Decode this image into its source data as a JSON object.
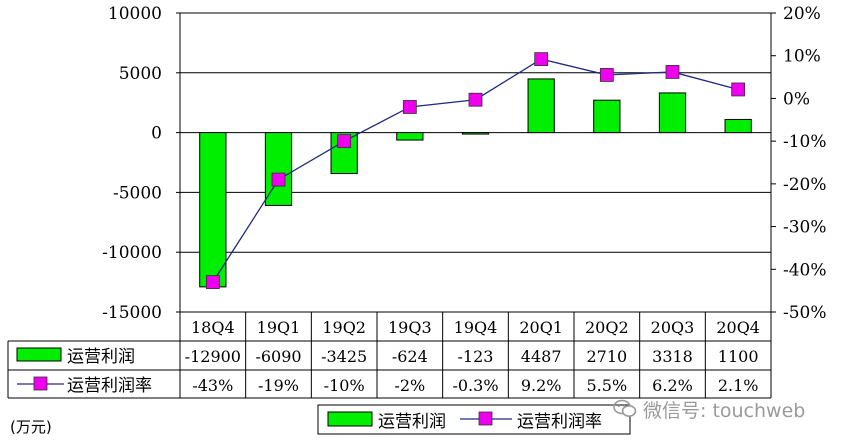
{
  "chart_data": {
    "type": "bar",
    "categories": [
      "18Q4",
      "19Q1",
      "19Q2",
      "19Q3",
      "19Q4",
      "20Q1",
      "20Q2",
      "20Q3",
      "20Q4"
    ],
    "series": [
      {
        "name": "运营利润",
        "type": "bar",
        "axis": "left",
        "color": "#00ee00",
        "values": [
          -12900,
          -6090,
          -3425,
          -624,
          -123,
          4487,
          2710,
          3318,
          1100
        ],
        "table_labels": [
          "-12900",
          "-6090",
          "-3425",
          "-624",
          "-123",
          "4487",
          "2710",
          "3318",
          "1100"
        ]
      },
      {
        "name": "运营利润率",
        "type": "line",
        "axis": "right",
        "color": "#ee00ee",
        "values": [
          -43,
          -19,
          -10,
          -2,
          -0.3,
          9.2,
          5.5,
          6.2,
          2.1
        ],
        "table_labels": [
          "-43%",
          "-19%",
          "-10%",
          "-2%",
          "-0.3%",
          "9.2%",
          "5.5%",
          "6.2%",
          "2.1%"
        ]
      }
    ],
    "y_left": {
      "min": -15000,
      "max": 10000,
      "ticks": [
        10000,
        5000,
        0,
        -5000,
        -10000,
        -15000
      ],
      "tick_labels": [
        "10000",
        "5000",
        "0",
        "-5000",
        "-10000",
        "-15000"
      ]
    },
    "y_right": {
      "min": -50,
      "max": 20,
      "ticks": [
        20,
        10,
        0,
        -10,
        -20,
        -30,
        -40,
        -50
      ],
      "tick_labels": [
        "20%",
        "10%",
        "0%",
        "-10%",
        "-20%",
        "-30%",
        "-40%",
        "-50%"
      ]
    },
    "grid": true,
    "legend_placement": "bottom-right",
    "unit_note": "(万元)"
  },
  "watermark": {
    "text": "微信号: touchweb"
  },
  "colors": {
    "bar": "#00ee00",
    "marker": "#ee00ee",
    "line": "#1f2a80"
  }
}
